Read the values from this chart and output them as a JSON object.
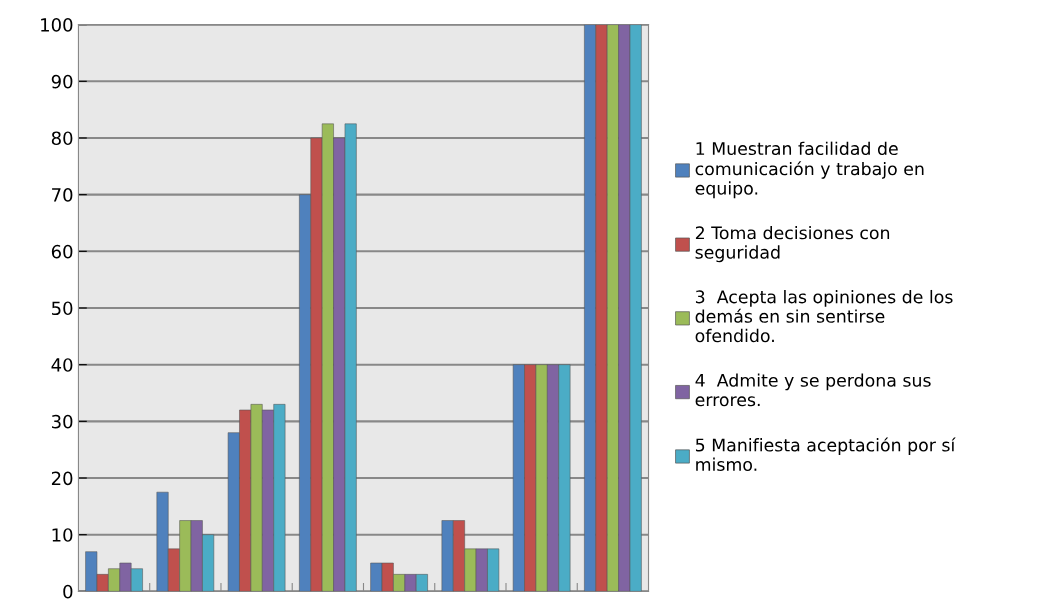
{
  "chart_data": {
    "type": "bar",
    "categories": [
      null,
      null,
      null,
      null,
      null,
      null,
      null,
      null
    ],
    "series": [
      {
        "name": "1 Muestran facilidad de\ncomunicación y trabajo en\nequipo.",
        "color": "#4f81bd",
        "values": [
          7,
          17.5,
          28,
          70,
          5,
          12.5,
          40,
          100
        ]
      },
      {
        "name": "2 Toma decisiones con\nseguridad",
        "color": "#c0504d",
        "values": [
          3,
          7.5,
          32,
          80,
          5,
          12.5,
          40,
          100
        ]
      },
      {
        "name": "3  Acepta las opiniones de los\ndemás en sin sentirse\nofendido.",
        "color": "#9bbb59",
        "values": [
          4,
          12.5,
          33,
          82.5,
          3,
          7.5,
          40,
          100
        ]
      },
      {
        "name": "4  Admite y se perdona sus\nerrores.",
        "color": "#8064a2",
        "values": [
          5,
          12.5,
          32,
          80,
          3,
          7.5,
          40,
          100
        ]
      },
      {
        "name": "5 Manifiesta aceptación por sí\nmismo.",
        "color": "#4bacc6",
        "values": [
          4,
          10,
          33,
          82.5,
          3,
          7.5,
          40,
          100
        ]
      }
    ],
    "ylim": [
      0,
      100
    ],
    "yticks": [
      0,
      10,
      20,
      30,
      40,
      50,
      60,
      70,
      80,
      90,
      100
    ],
    "grid": "y",
    "legend": "right"
  }
}
